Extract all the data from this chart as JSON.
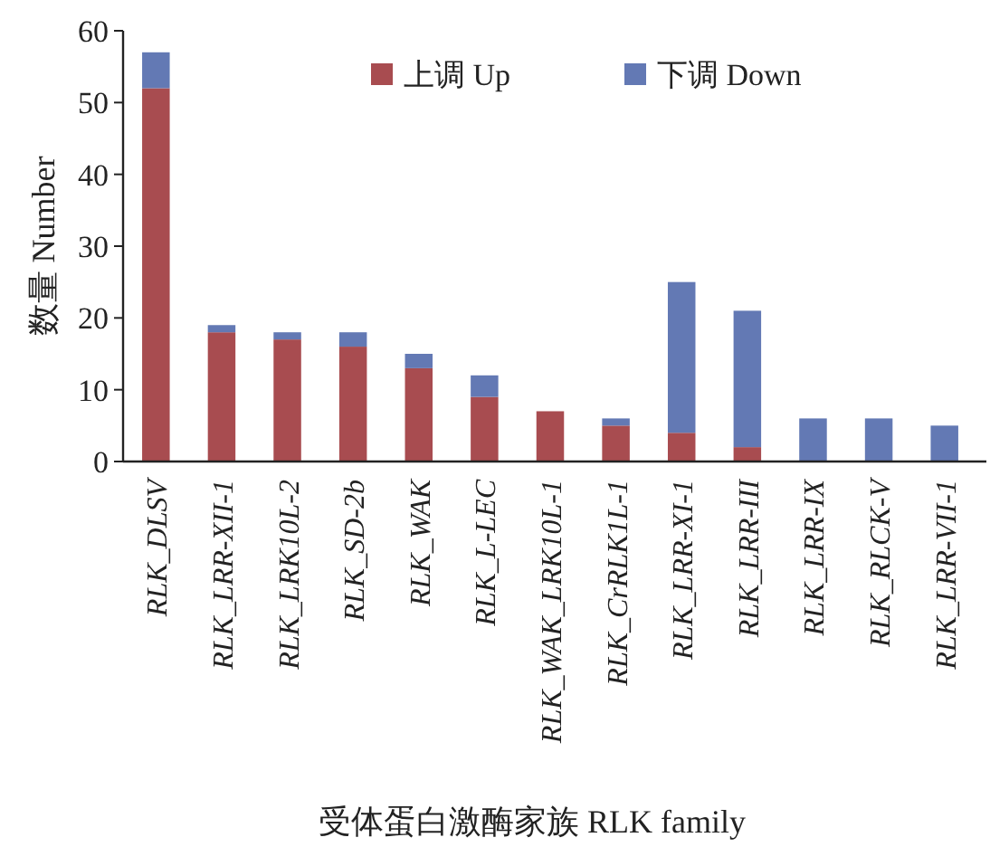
{
  "chart_data": {
    "type": "bar",
    "stacked": true,
    "xlabel": "受体蛋白激酶家族 RLK family",
    "ylabel": "数量 Number",
    "categories": [
      "RLK_DLSV",
      "RLK_LRR-XII-1",
      "RLK_LRK10L-2",
      "RLK_SD-2b",
      "RLK_WAK",
      "RLK_L-LEC",
      "RLK_WAK_LRK10L-1",
      "RLK_CrRLK1L-1",
      "RLK_LRR-XI-1",
      "RLK_LRR-III",
      "RLK_LRR-IX",
      "RLK_RLCK-V",
      "RLK_LRR-VII-1"
    ],
    "series": [
      {
        "name": "上调 Up",
        "color": "#a84c50",
        "values": [
          52,
          18,
          17,
          16,
          13,
          9,
          7,
          5,
          4,
          2,
          0,
          0,
          0
        ]
      },
      {
        "name": "下调 Down",
        "color": "#6379b4",
        "values": [
          5,
          1,
          1,
          2,
          2,
          3,
          0,
          1,
          21,
          19,
          6,
          6,
          5
        ]
      }
    ],
    "ylim": [
      0,
      60
    ],
    "yticks": [
      0,
      10,
      20,
      30,
      40,
      50,
      60
    ],
    "grid": false,
    "legend": "top right"
  }
}
